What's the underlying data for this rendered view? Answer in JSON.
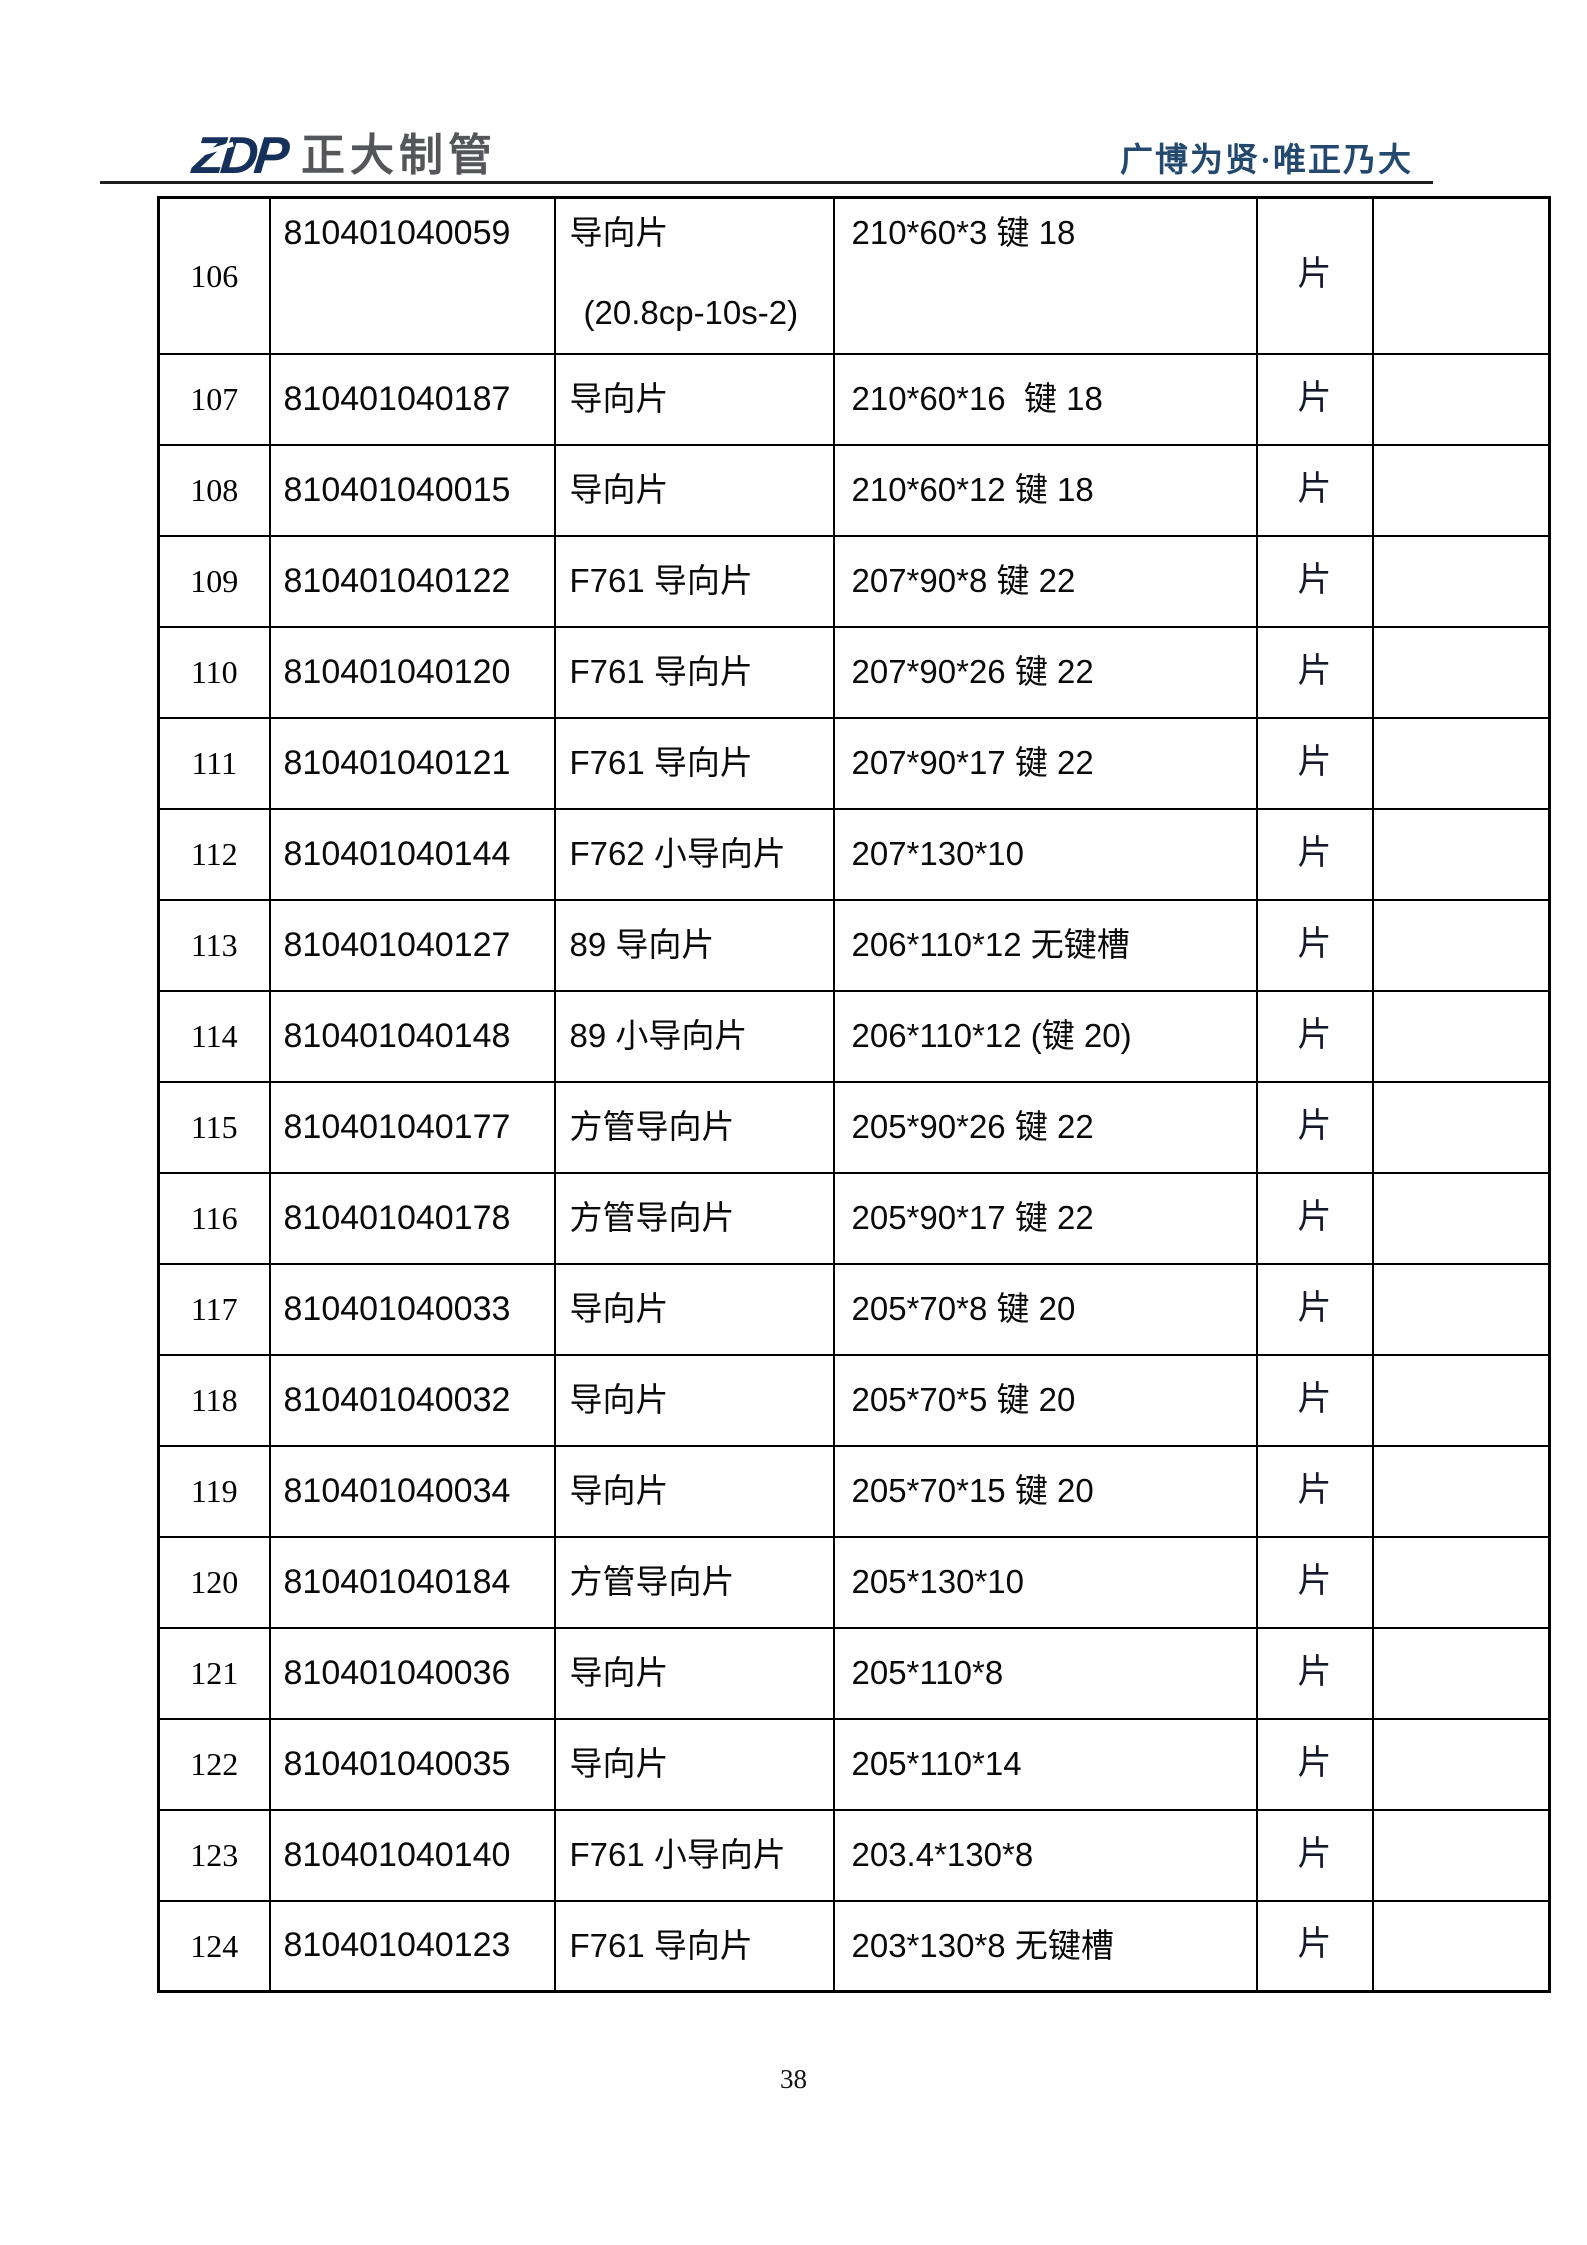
{
  "header": {
    "logo_zdp": "ZDP",
    "logo_name": "正大制管",
    "slogan": "广博为贤·唯正乃大"
  },
  "table": {
    "rows": [
      {
        "no": "106",
        "code": "810401040059",
        "name": "导向片",
        "name2": "(20.8cp-10s-2)",
        "spec": "210*60*3 键 18",
        "unit": "片",
        "extra": ""
      },
      {
        "no": "107",
        "code": "810401040187",
        "name": "导向片",
        "name2": "",
        "spec": "210*60*16  键 18",
        "unit": "片",
        "extra": ""
      },
      {
        "no": "108",
        "code": "810401040015",
        "name": "导向片",
        "name2": "",
        "spec": "210*60*12 键 18",
        "unit": "片",
        "extra": ""
      },
      {
        "no": "109",
        "code": "810401040122",
        "name": "F761 导向片",
        "name2": "",
        "spec": "207*90*8 键 22",
        "unit": "片",
        "extra": ""
      },
      {
        "no": "110",
        "code": "810401040120",
        "name": "F761 导向片",
        "name2": "",
        "spec": "207*90*26 键 22",
        "unit": "片",
        "extra": ""
      },
      {
        "no": "111",
        "code": "810401040121",
        "name": "F761 导向片",
        "name2": "",
        "spec": "207*90*17 键 22",
        "unit": "片",
        "extra": ""
      },
      {
        "no": "112",
        "code": "810401040144",
        "name": "F762 小导向片",
        "name2": "",
        "spec": "207*130*10",
        "unit": "片",
        "extra": ""
      },
      {
        "no": "113",
        "code": "810401040127",
        "name": "89 导向片",
        "name2": "",
        "spec": "206*110*12 无键槽",
        "unit": "片",
        "extra": ""
      },
      {
        "no": "114",
        "code": "810401040148",
        "name": "89 小导向片",
        "name2": "",
        "spec": "206*110*12 (键 20)",
        "unit": "片",
        "extra": ""
      },
      {
        "no": "115",
        "code": "810401040177",
        "name": "方管导向片",
        "name2": "",
        "spec": "205*90*26 键 22",
        "unit": "片",
        "extra": ""
      },
      {
        "no": "116",
        "code": "810401040178",
        "name": "方管导向片",
        "name2": "",
        "spec": "205*90*17 键 22",
        "unit": "片",
        "extra": ""
      },
      {
        "no": "117",
        "code": "810401040033",
        "name": "导向片",
        "name2": "",
        "spec": "205*70*8 键 20",
        "unit": "片",
        "extra": ""
      },
      {
        "no": "118",
        "code": "810401040032",
        "name": "导向片",
        "name2": "",
        "spec": "205*70*5 键 20",
        "unit": "片",
        "extra": ""
      },
      {
        "no": "119",
        "code": "810401040034",
        "name": "导向片",
        "name2": "",
        "spec": "205*70*15 键 20",
        "unit": "片",
        "extra": ""
      },
      {
        "no": "120",
        "code": "810401040184",
        "name": "方管导向片",
        "name2": "",
        "spec": "205*130*10",
        "unit": "片",
        "extra": ""
      },
      {
        "no": "121",
        "code": "810401040036",
        "name": "导向片",
        "name2": "",
        "spec": "205*110*8",
        "unit": "片",
        "extra": ""
      },
      {
        "no": "122",
        "code": "810401040035",
        "name": "导向片",
        "name2": "",
        "spec": "205*110*14",
        "unit": "片",
        "extra": ""
      },
      {
        "no": "123",
        "code": "810401040140",
        "name": "F761 小导向片",
        "name2": "",
        "spec": "203.4*130*8",
        "unit": "片",
        "extra": ""
      },
      {
        "no": "124",
        "code": "810401040123",
        "name": "F761 导向片",
        "name2": "",
        "spec": "203*130*8 无键槽",
        "unit": "片",
        "extra": ""
      }
    ]
  },
  "footer": {
    "page_number": "38"
  }
}
